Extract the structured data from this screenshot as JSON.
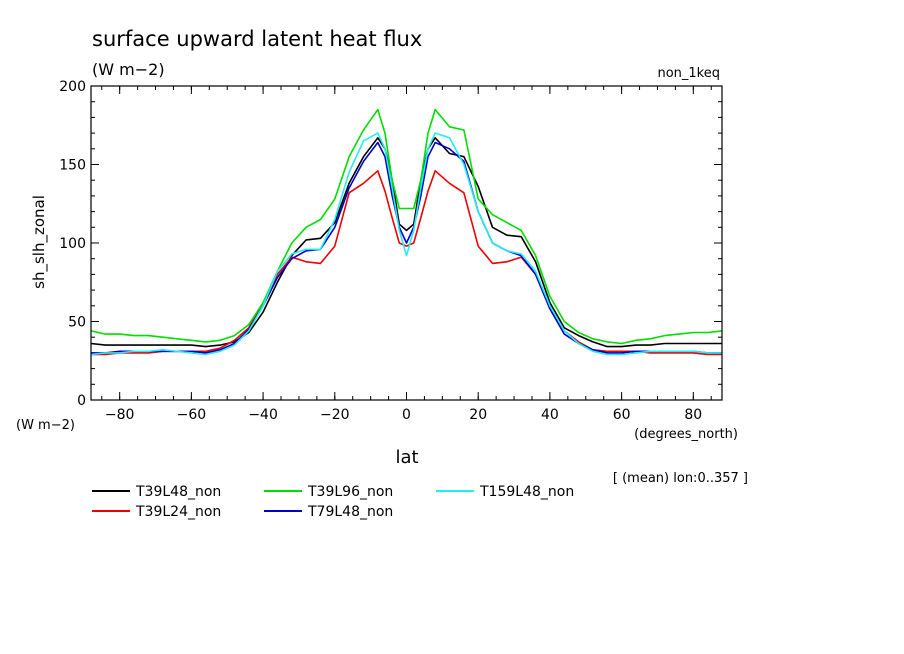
{
  "chart_data": {
    "type": "line",
    "title": "surface upward latent heat flux",
    "units_label": "(W m−2)",
    "run_label": "non_1keq",
    "ylabel": "sh_slh_zonal",
    "y_units_label": "(W m−2)",
    "xlabel": "lat",
    "x_units_label": "(degrees_north)",
    "mean_note": "[ (mean) lon:0..357 ]",
    "xlim": [
      -88,
      88
    ],
    "ylim": [
      0,
      200
    ],
    "x_ticks": [
      -80,
      -60,
      -40,
      -20,
      0,
      20,
      40,
      60,
      80
    ],
    "y_ticks": [
      0,
      50,
      100,
      150,
      200
    ],
    "legend_position": "bottom-left",
    "x": [
      -88,
      -84,
      -80,
      -76,
      -72,
      -68,
      -64,
      -60,
      -56,
      -52,
      -48,
      -44,
      -40,
      -36,
      -32,
      -28,
      -24,
      -20,
      -16,
      -12,
      -8,
      -6,
      -4,
      -2,
      0,
      2,
      4,
      6,
      8,
      12,
      16,
      20,
      24,
      28,
      32,
      36,
      40,
      44,
      48,
      52,
      56,
      60,
      64,
      68,
      72,
      76,
      80,
      84,
      88
    ],
    "series": [
      {
        "name": "T39L48_non",
        "color": "#000000",
        "values": [
          36,
          35,
          35,
          35,
          35,
          35,
          35,
          35,
          34,
          35,
          37,
          43,
          56,
          75,
          92,
          102,
          103,
          113,
          138,
          155,
          167,
          160,
          140,
          112,
          108,
          112,
          140,
          160,
          167,
          157,
          155,
          136,
          110,
          105,
          104,
          88,
          62,
          46,
          41,
          37,
          34,
          34,
          35,
          35,
          36,
          36,
          36,
          36,
          36
        ]
      },
      {
        "name": "T39L24_non",
        "color": "#ee0000",
        "values": [
          29,
          29,
          30,
          30,
          30,
          31,
          31,
          31,
          31,
          33,
          38,
          46,
          62,
          80,
          91,
          88,
          87,
          98,
          132,
          138,
          146,
          133,
          116,
          100,
          98,
          100,
          116,
          133,
          146,
          138,
          132,
          98,
          87,
          88,
          91,
          80,
          59,
          44,
          37,
          32,
          31,
          31,
          31,
          30,
          30,
          30,
          30,
          29,
          29
        ]
      },
      {
        "name": "T39L96_non",
        "color": "#00dd00",
        "values": [
          44,
          42,
          42,
          41,
          41,
          40,
          39,
          38,
          37,
          38,
          41,
          48,
          62,
          82,
          100,
          110,
          115,
          128,
          155,
          172,
          185,
          170,
          140,
          122,
          122,
          122,
          140,
          170,
          185,
          174,
          172,
          128,
          118,
          113,
          108,
          92,
          66,
          50,
          43,
          39,
          37,
          36,
          38,
          39,
          41,
          42,
          43,
          43,
          44
        ]
      },
      {
        "name": "T79L48_non",
        "color": "#0000cc",
        "values": [
          30,
          30,
          31,
          31,
          31,
          31,
          31,
          31,
          30,
          32,
          36,
          45,
          60,
          78,
          90,
          95,
          96,
          110,
          135,
          152,
          164,
          155,
          130,
          110,
          100,
          110,
          130,
          155,
          164,
          160,
          152,
          120,
          100,
          95,
          92,
          80,
          58,
          42,
          36,
          32,
          30,
          30,
          31,
          31,
          31,
          31,
          31,
          30,
          30
        ]
      },
      {
        "name": "T159L48_non",
        "color": "#22eeee",
        "values": [
          29,
          30,
          30,
          31,
          31,
          32,
          31,
          30,
          29,
          31,
          35,
          44,
          60,
          82,
          93,
          96,
          96,
          115,
          145,
          165,
          170,
          160,
          135,
          108,
          92,
          108,
          135,
          160,
          170,
          167,
          150,
          120,
          100,
          95,
          93,
          82,
          60,
          44,
          36,
          31,
          29,
          29,
          30,
          31,
          31,
          31,
          31,
          30,
          30
        ]
      }
    ]
  }
}
